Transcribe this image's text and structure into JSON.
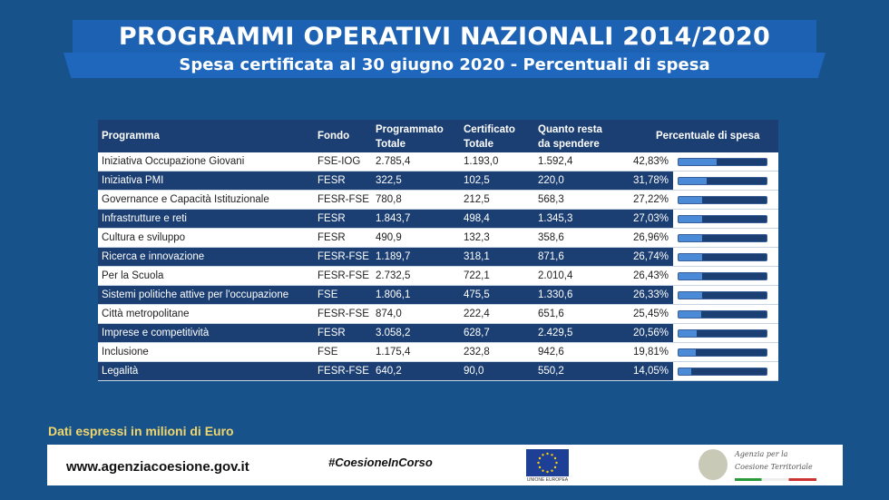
{
  "header": {
    "title": "PROGRAMMI OPERATIVI NAZIONALI 2014/2020",
    "subtitle": "Spesa certificata al 30 giugno 2020 - Percentuali di spesa"
  },
  "chart_data": {
    "type": "table",
    "columns": [
      "Programma",
      "Fondo",
      "Programmato Totale",
      "Certificato Totale",
      "Quanto resta da spendere",
      "Percentuale di spesa"
    ],
    "rows": [
      [
        "Iniziativa Occupazione Giovani",
        "FSE-IOG",
        "2.785,4",
        "1.193,0",
        "1.592,4",
        "42,83%",
        42.83
      ],
      [
        "Iniziativa PMI",
        "FESR",
        "322,5",
        "102,5",
        "220,0",
        "31,78%",
        31.78
      ],
      [
        "Governance e Capacità Istituzionale",
        "FESR-FSE",
        "780,8",
        "212,5",
        "568,3",
        "27,22%",
        27.22
      ],
      [
        "Infrastrutture e reti",
        "FESR",
        "1.843,7",
        "498,4",
        "1.345,3",
        "27,03%",
        27.03
      ],
      [
        "Cultura e sviluppo",
        "FESR",
        "490,9",
        "132,3",
        "358,6",
        "26,96%",
        26.96
      ],
      [
        "Ricerca e innovazione",
        "FESR-FSE",
        "1.189,7",
        "318,1",
        "871,6",
        "26,74%",
        26.74
      ],
      [
        "Per la Scuola",
        "FESR-FSE",
        "2.732,5",
        "722,1",
        "2.010,4",
        "26,43%",
        26.43
      ],
      [
        "Sistemi politiche attive per l'occupazione",
        "FSE",
        "1.806,1",
        "475,5",
        "1.330,6",
        "26,33%",
        26.33
      ],
      [
        "Città metropolitane",
        "FESR-FSE",
        "874,0",
        "222,4",
        "651,6",
        "25,45%",
        25.45
      ],
      [
        "Imprese e competitività",
        "FESR",
        "3.058,2",
        "628,7",
        "2.429,5",
        "20,56%",
        20.56
      ],
      [
        "Inclusione",
        "FSE",
        "1.175,4",
        "232,8",
        "942,6",
        "19,81%",
        19.81
      ],
      [
        "Legalità",
        "FESR-FSE",
        "640,2",
        "90,0",
        "550,2",
        "14,05%",
        14.05
      ]
    ],
    "unit_note": "Dati espressi in milioni di Euro"
  },
  "header_cells": {
    "c0": "Programma",
    "c1": "Fondo",
    "c2a": "Programmato",
    "c2b": "Totale",
    "c3a": "Certificato",
    "c3b": "Totale",
    "c4a": "Quanto resta",
    "c4b": "da spendere",
    "c5": "Percentuale di spesa"
  },
  "footer": {
    "url": "www.agenziacoesione.gov.it",
    "hashtag": "#CoesioneInCorso",
    "eu_label": "UNIONE EUROPEA",
    "agency_line1": "Agenzia per la",
    "agency_line2": "Coesione Territoriale"
  },
  "colors": {
    "background": "#17528b",
    "navy": "#1c3f73",
    "bar_fill": "#4a8ad6",
    "note": "#f1d66b"
  }
}
